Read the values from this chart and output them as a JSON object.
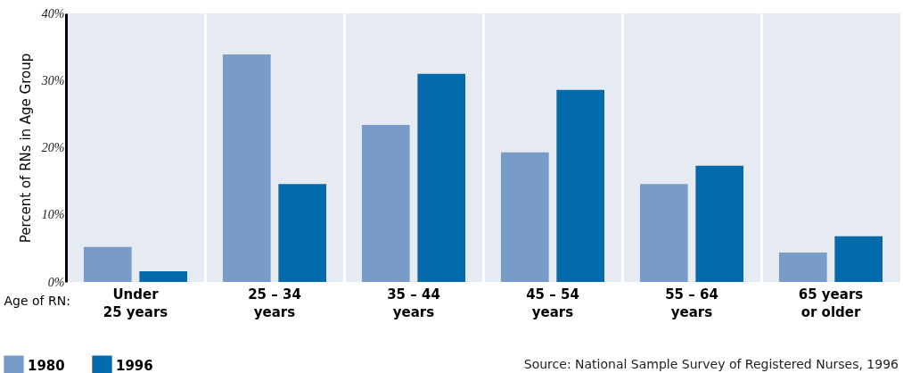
{
  "chart_data": {
    "type": "bar",
    "ylabel": "Percent of RNs in Age Group",
    "xlabel": "Age of RN:",
    "categories": [
      "Under\n25 years",
      "25 – 34\nyears",
      "35 – 44\nyears",
      "45 – 54\nyears",
      "55 – 64\nyears",
      "65 years\nor older"
    ],
    "series": [
      {
        "name": "1980",
        "color": "#789cc7",
        "values": [
          5.2,
          33.9,
          23.4,
          19.3,
          14.6,
          4.4
        ]
      },
      {
        "name": "1996",
        "color": "#036aab",
        "values": [
          1.6,
          14.6,
          31.0,
          28.6,
          17.3,
          6.8
        ]
      }
    ],
    "ylim": [
      0,
      40
    ],
    "yticks": [
      {
        "value": 0,
        "label": "0%"
      },
      {
        "value": 10,
        "label": "10%"
      },
      {
        "value": 20,
        "label": "20%"
      },
      {
        "value": 30,
        "label": "30%"
      },
      {
        "value": 40,
        "label": "40%"
      }
    ],
    "grid": "x",
    "legend": "bottom left",
    "annotations": [
      "Source: National Sample Survey of Registered Nurses, 1996"
    ]
  }
}
